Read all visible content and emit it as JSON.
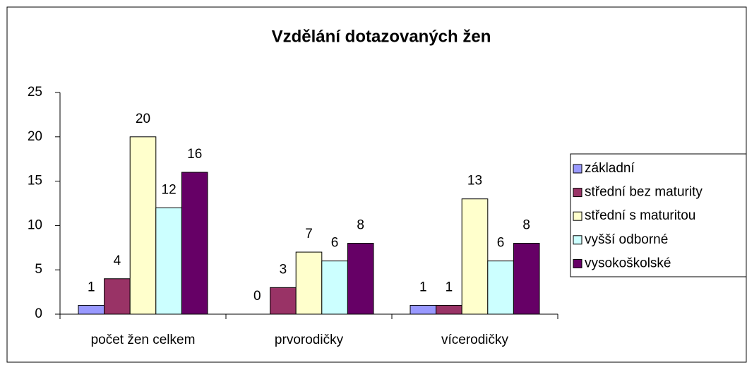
{
  "chart_data": {
    "type": "bar",
    "title": "Vzdělání dotazovaných žen",
    "categories": [
      "počet žen celkem",
      "prvorodičky",
      "vícerodičky"
    ],
    "series": [
      {
        "name": "základní",
        "color": "#9999ff",
        "values": [
          1,
          0,
          1
        ]
      },
      {
        "name": "střední bez maturity",
        "color": "#993366",
        "values": [
          4,
          3,
          1
        ]
      },
      {
        "name": "střední s maturitou",
        "color": "#ffffcc",
        "values": [
          20,
          7,
          13
        ]
      },
      {
        "name": "vyšší odborné",
        "color": "#ccffff",
        "values": [
          12,
          6,
          6
        ]
      },
      {
        "name": "vysokoškolské",
        "color": "#660066",
        "values": [
          16,
          8,
          8
        ]
      }
    ],
    "ylim": [
      0,
      25
    ],
    "yticks": [
      0,
      5,
      10,
      15,
      20,
      25
    ],
    "legend": "right"
  }
}
